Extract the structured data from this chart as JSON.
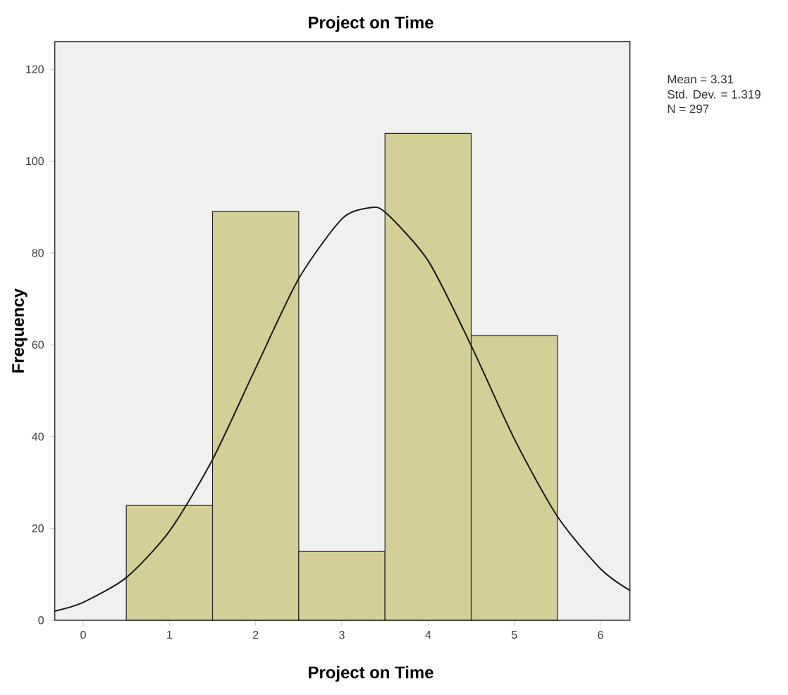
{
  "chart_data": {
    "type": "histogram",
    "title": "Project on Time",
    "xlabel": "Project on Time",
    "ylabel": "Frequency",
    "annotations": [
      "Mean = 3.31",
      "Std. Dev. = 1.319",
      "N = 297"
    ],
    "xlim": [
      -0.33,
      6.34
    ],
    "ylim": [
      0,
      126
    ],
    "xticks": [
      0,
      1,
      2,
      3,
      4,
      5,
      6
    ],
    "yticks": [
      0,
      20,
      40,
      60,
      80,
      100,
      120
    ],
    "series": [
      {
        "color": "#d3cf96",
        "bins": [
          0.5,
          1.5,
          2.5,
          3.5,
          4.5,
          5.5
        ],
        "values": [
          25,
          89,
          15,
          106,
          62
        ]
      },
      {
        "type": "line",
        "color": "#1a1a1a",
        "marker": "none",
        "x": [
          -0.33,
          0,
          0.5,
          1,
          1.5,
          2,
          2.5,
          3,
          3.31,
          3.5,
          4,
          4.5,
          5,
          5.5,
          6,
          6.34
        ],
        "values": [
          2,
          3.9,
          9.3,
          19.4,
          35,
          54.9,
          74.4,
          87.4,
          89.8,
          88.9,
          78.3,
          59.8,
          39.5,
          22.6,
          11.2,
          6.5
        ]
      }
    ],
    "grid": false
  }
}
